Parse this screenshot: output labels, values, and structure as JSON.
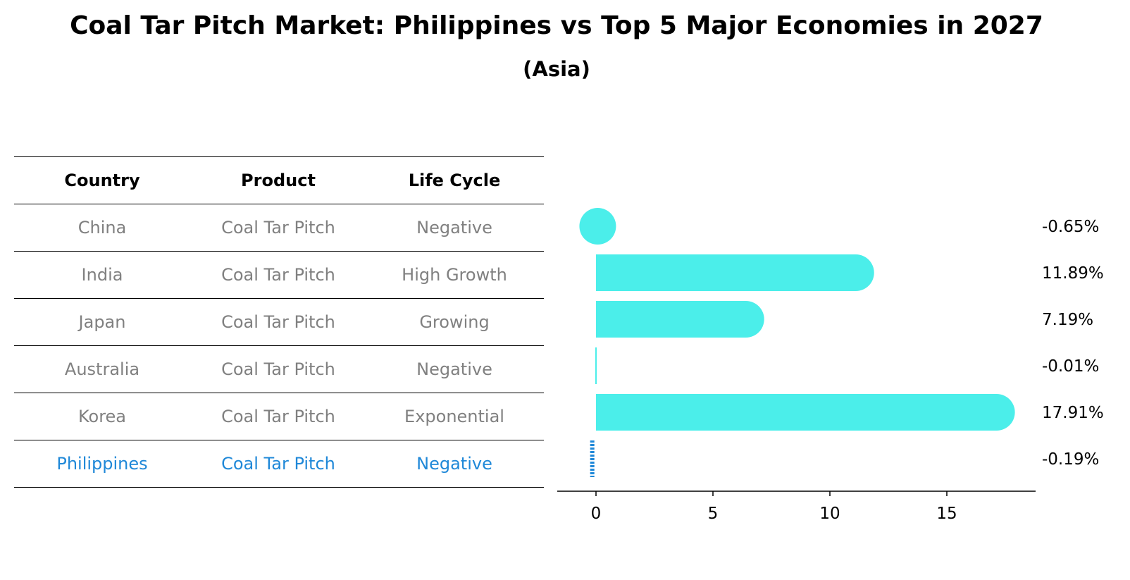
{
  "title": "Coal Tar Pitch Market: Philippines vs Top 5 Major Economies in 2027",
  "subtitle": "(Asia)",
  "table": {
    "headers": [
      "Country",
      "Product",
      "Life Cycle"
    ],
    "rows": [
      {
        "country": "China",
        "product": "Coal Tar Pitch",
        "life_cycle": "Negative"
      },
      {
        "country": "India",
        "product": "Coal Tar Pitch",
        "life_cycle": "High Growth"
      },
      {
        "country": "Japan",
        "product": "Coal Tar Pitch",
        "life_cycle": "Growing"
      },
      {
        "country": "Australia",
        "product": "Coal Tar Pitch",
        "life_cycle": "Negative"
      },
      {
        "country": "Korea",
        "product": "Coal Tar Pitch",
        "life_cycle": "Exponential"
      },
      {
        "country": "Philippines",
        "product": "Coal Tar Pitch",
        "life_cycle": "Negative"
      }
    ]
  },
  "colors": {
    "bar": "#4beeea",
    "highlight": "#1f88d8",
    "muted_text": "#808080"
  },
  "chart_data": {
    "type": "bar",
    "orientation": "horizontal",
    "categories": [
      "China",
      "India",
      "Japan",
      "Australia",
      "Korea",
      "Philippines"
    ],
    "values": [
      -0.65,
      11.89,
      7.19,
      -0.01,
      17.91,
      -0.19
    ],
    "value_labels": [
      "-0.65%",
      "11.89%",
      "7.19%",
      "-0.01%",
      "17.91%",
      "-0.19%"
    ],
    "highlight_category": "Philippines",
    "xticks": [
      0,
      5,
      10,
      15
    ],
    "xlim": [
      -1.6,
      18.8
    ],
    "grid": false
  }
}
